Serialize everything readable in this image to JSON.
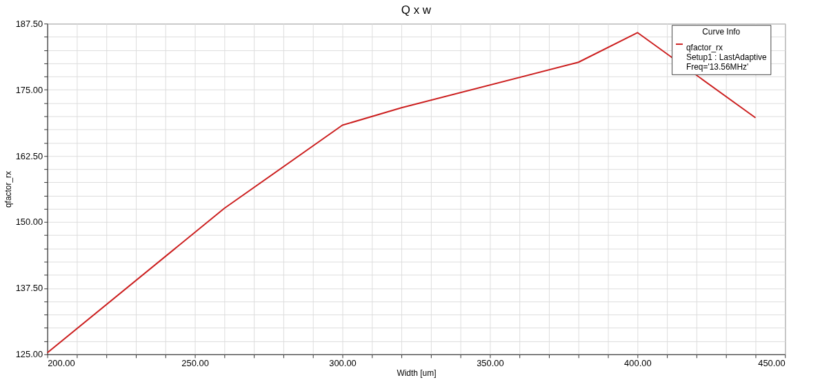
{
  "chart_data": {
    "type": "line",
    "title": "Q x w",
    "xlabel": "Width [um]",
    "ylabel": "qfactor_rx",
    "legend_title": "Curve Info",
    "x": [
      200,
      260,
      300,
      320,
      380,
      400,
      440
    ],
    "series": [
      {
        "name": "qfactor_rx",
        "color": "#cc1f1f",
        "values": [
          125.3,
          152.6,
          168.3,
          171.6,
          180.2,
          185.8,
          169.7
        ]
      }
    ],
    "annotations": [
      "Setup1 : LastAdaptive",
      "Freq='13.56MHz'"
    ],
    "xlim": [
      200,
      450
    ],
    "xticks": [
      {
        "value": 200,
        "label": "200.00"
      },
      {
        "value": 210,
        "label": null
      },
      {
        "value": 220,
        "label": null
      },
      {
        "value": 230,
        "label": null
      },
      {
        "value": 240,
        "label": null
      },
      {
        "value": 250,
        "label": "250.00"
      },
      {
        "value": 260,
        "label": null
      },
      {
        "value": 270,
        "label": null
      },
      {
        "value": 280,
        "label": null
      },
      {
        "value": 290,
        "label": null
      },
      {
        "value": 300,
        "label": "300.00"
      },
      {
        "value": 310,
        "label": null
      },
      {
        "value": 320,
        "label": null
      },
      {
        "value": 330,
        "label": null
      },
      {
        "value": 340,
        "label": null
      },
      {
        "value": 350,
        "label": "350.00"
      },
      {
        "value": 360,
        "label": null
      },
      {
        "value": 370,
        "label": null
      },
      {
        "value": 380,
        "label": null
      },
      {
        "value": 390,
        "label": null
      },
      {
        "value": 400,
        "label": "400.00"
      },
      {
        "value": 410,
        "label": null
      },
      {
        "value": 420,
        "label": null
      },
      {
        "value": 430,
        "label": null
      },
      {
        "value": 440,
        "label": null
      },
      {
        "value": 450,
        "label": "450.00"
      }
    ],
    "ylim": [
      125,
      187.5
    ],
    "yticks": [
      {
        "value": 125,
        "label": "125.00"
      },
      {
        "value": 127.5,
        "label": null
      },
      {
        "value": 130,
        "label": null
      },
      {
        "value": 132.5,
        "label": null
      },
      {
        "value": 135,
        "label": null
      },
      {
        "value": 137.5,
        "label": "137.50"
      },
      {
        "value": 140,
        "label": null
      },
      {
        "value": 142.5,
        "label": null
      },
      {
        "value": 145,
        "label": null
      },
      {
        "value": 147.5,
        "label": null
      },
      {
        "value": 150,
        "label": "150.00"
      },
      {
        "value": 152.5,
        "label": null
      },
      {
        "value": 155,
        "label": null
      },
      {
        "value": 157.5,
        "label": null
      },
      {
        "value": 160,
        "label": null
      },
      {
        "value": 162.5,
        "label": "162.50"
      },
      {
        "value": 165,
        "label": null
      },
      {
        "value": 167.5,
        "label": null
      },
      {
        "value": 170,
        "label": null
      },
      {
        "value": 172.5,
        "label": null
      },
      {
        "value": 175,
        "label": "175.00"
      },
      {
        "value": 177.5,
        "label": null
      },
      {
        "value": 180,
        "label": null
      },
      {
        "value": 182.5,
        "label": null
      },
      {
        "value": 185,
        "label": null
      },
      {
        "value": 187.5,
        "label": "187.50"
      }
    ],
    "grid": true,
    "legend": "top right",
    "marker": "none",
    "line_style": "solid"
  }
}
